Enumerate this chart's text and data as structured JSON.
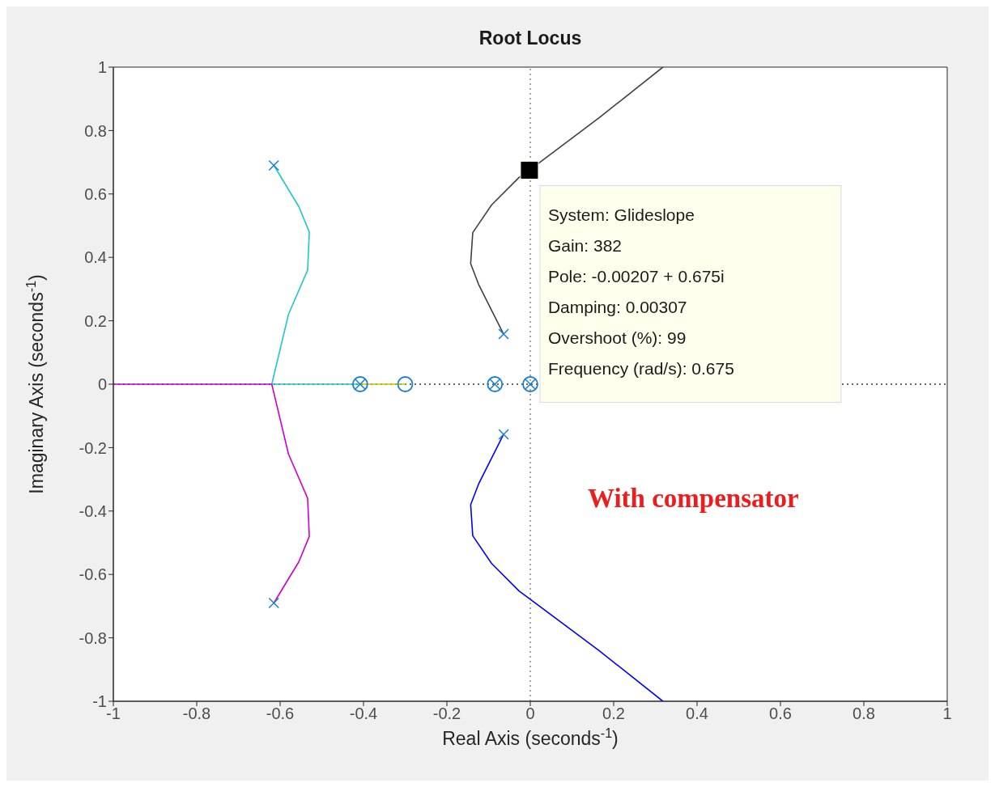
{
  "chart_data": {
    "type": "line",
    "title": "Root Locus",
    "xlabel": "Real Axis (seconds$^{-1}$)",
    "ylabel": "Imaginary Axis (seconds$^{-1}$)",
    "xlim": [
      -1,
      1
    ],
    "ylim": [
      -1,
      1
    ],
    "xticks": [
      -1,
      -0.8,
      -0.6,
      -0.4,
      -0.2,
      0,
      0.2,
      0.4,
      0.6,
      0.8,
      1
    ],
    "yticks": [
      -1,
      -0.8,
      -0.6,
      -0.4,
      -0.2,
      0,
      0.2,
      0.4,
      0.6,
      0.8,
      1
    ],
    "grid": false,
    "series": [
      {
        "type": "line",
        "color": "#1fc8c8",
        "marker": "none",
        "x": [
          -0.615,
          -0.555,
          -0.53,
          -0.534,
          -0.58,
          -0.62,
          -0.41
        ],
        "values": [
          0.69,
          0.56,
          0.48,
          0.36,
          0.22,
          0,
          0
        ]
      },
      {
        "type": "line",
        "color": "#cc00cc",
        "marker": "none",
        "x": [
          -1,
          -0.62,
          -0.58,
          -0.534,
          -0.53,
          -0.555,
          -0.615
        ],
        "values": [
          0,
          0,
          -0.22,
          -0.36,
          -0.48,
          -0.56,
          -0.69
        ]
      },
      {
        "type": "line",
        "color": "#c8c800",
        "marker": "none",
        "x": [
          -0.41,
          -0.3
        ],
        "values": [
          0,
          0
        ]
      },
      {
        "type": "line",
        "color": "#404040",
        "marker": "none",
        "x": [
          -0.064,
          -0.124,
          -0.143,
          -0.138,
          -0.093,
          -0.027,
          -0.00207,
          0.165,
          0.318
        ],
        "values": [
          0.158,
          0.315,
          0.38,
          0.478,
          0.565,
          0.652,
          0.675,
          0.84,
          1
        ]
      },
      {
        "type": "line",
        "color": "#0000ff",
        "marker": "none",
        "x": [
          -0.064,
          -0.124,
          -0.143,
          -0.138,
          -0.093,
          -0.027,
          0.165,
          0.318
        ],
        "values": [
          -0.158,
          -0.315,
          -0.38,
          -0.478,
          -0.565,
          -0.652,
          -0.84,
          -1
        ]
      },
      {
        "type": "scatter",
        "color": "#1a7fd0",
        "marker": "cross",
        "x": [
          -0.615,
          -0.615,
          -0.064,
          -0.064,
          -0.408,
          -0.085,
          0
        ],
        "values": [
          0.69,
          -0.69,
          0.158,
          -0.158,
          0,
          0,
          0
        ]
      },
      {
        "type": "scatter",
        "color": "#1a7fd0",
        "marker": "circle",
        "x": [
          -0.408,
          -0.3,
          -0.085,
          0
        ],
        "values": [
          0,
          0,
          0,
          0
        ]
      },
      {
        "type": "scatter",
        "color": "#000000",
        "marker": "square",
        "x": [
          -0.00207
        ],
        "values": [
          0.675
        ]
      }
    ],
    "ref_lines": [
      {
        "axis": "x",
        "value": 0,
        "color": "#8c8c8c",
        "line_style": "dotted"
      },
      {
        "axis": "y",
        "value": 0,
        "color": "#333333",
        "line_style": "dotted"
      }
    ],
    "annotations": [
      {
        "text": "System: Glideslope\nGain: 382\nPole: -0.00207 + 0.675i\nDamping: 0.00307\nOvershoot (%): 99\nFrequency (rad/s): 0.675",
        "x": -0.00207,
        "y": 0.675
      },
      "With compensator"
    ]
  }
}
